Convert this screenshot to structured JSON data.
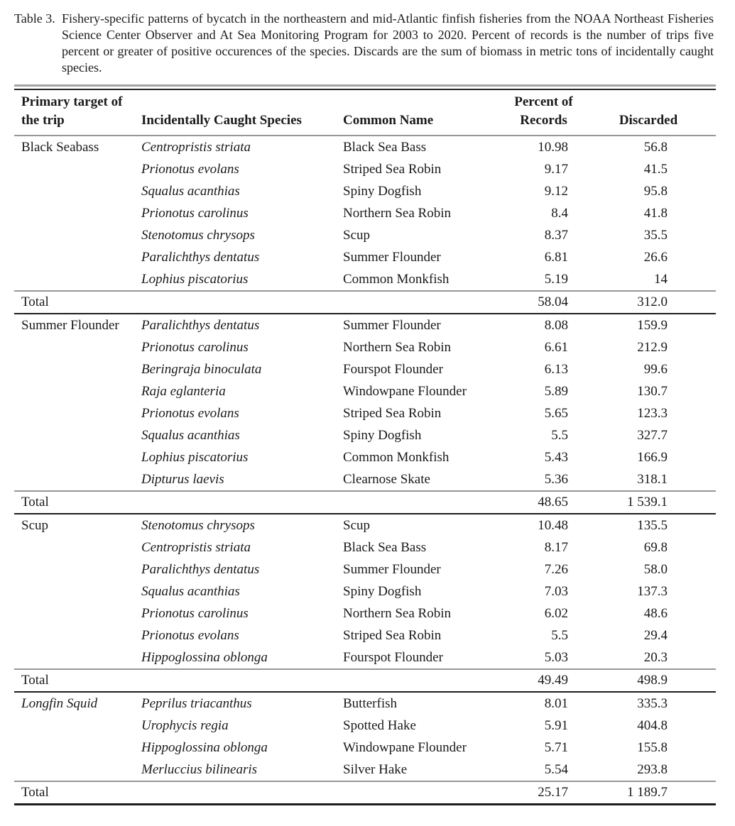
{
  "caption": {
    "label": "Table 3.",
    "text": "Fishery-specific patterns of bycatch in the northeastern and mid-Atlantic finfish fisheries from the NOAA Northeast Fisheries Science Center Observer and At Sea Monitoring Program for 2003 to 2020. Percent of records is the number of trips five percent or greater of positive occurences of the species. Discards are the sum of biomass in metric tons of incidentally caught species."
  },
  "table": {
    "headers": [
      "Primary target of\nthe trip",
      "Incidentally Caught Species",
      "Common Name",
      "Percent of\nRecords",
      "Discarded"
    ],
    "sections": [
      {
        "target": "Black Seabass",
        "target_italic": false,
        "rows": [
          {
            "species": "Centropristis striata",
            "common": "Black Sea Bass",
            "percent": "10.98",
            "discarded": "56.8"
          },
          {
            "species": "Prionotus evolans",
            "common": "Striped Sea Robin",
            "percent": "9.17",
            "discarded": "41.5"
          },
          {
            "species": "Squalus acanthias",
            "common": "Spiny Dogfish",
            "percent": "9.12",
            "discarded": "95.8"
          },
          {
            "species": "Prionotus carolinus",
            "common": "Northern Sea Robin",
            "percent": "8.4",
            "discarded": "41.8"
          },
          {
            "species": "Stenotomus chrysops",
            "common": "Scup",
            "percent": "8.37",
            "discarded": "35.5"
          },
          {
            "species": "Paralichthys dentatus",
            "common": "Summer Flounder",
            "percent": "6.81",
            "discarded": "26.6"
          },
          {
            "species": "Lophius piscatorius",
            "common": "Common Monkfish",
            "percent": "5.19",
            "discarded": "14"
          }
        ],
        "total": {
          "label": "Total",
          "percent": "58.04",
          "discarded": "312.0"
        }
      },
      {
        "target": "Summer Flounder",
        "target_italic": false,
        "rows": [
          {
            "species": "Paralichthys dentatus",
            "common": "Summer Flounder",
            "percent": "8.08",
            "discarded": "159.9"
          },
          {
            "species": "Prionotus carolinus",
            "common": "Northern Sea Robin",
            "percent": "6.61",
            "discarded": "212.9"
          },
          {
            "species": "Beringraja binoculata",
            "common": "Fourspot Flounder",
            "percent": "6.13",
            "discarded": "99.6"
          },
          {
            "species": "Raja eglanteria",
            "common": "Windowpane Flounder",
            "percent": "5.89",
            "discarded": "130.7"
          },
          {
            "species": "Prionotus evolans",
            "common": "Striped Sea Robin",
            "percent": "5.65",
            "discarded": "123.3"
          },
          {
            "species": "Squalus acanthias",
            "common": "Spiny Dogfish",
            "percent": "5.5",
            "discarded": "327.7"
          },
          {
            "species": "Lophius piscatorius",
            "common": "Common Monkfish",
            "percent": "5.43",
            "discarded": "166.9"
          },
          {
            "species": "Dipturus laevis",
            "common": "Clearnose Skate",
            "percent": "5.36",
            "discarded": "318.1"
          }
        ],
        "total": {
          "label": "Total",
          "percent": "48.65",
          "discarded": "1 539.1"
        }
      },
      {
        "target": "Scup",
        "target_italic": false,
        "rows": [
          {
            "species": "Stenotomus chrysops",
            "common": "Scup",
            "percent": "10.48",
            "discarded": "135.5"
          },
          {
            "species": "Centropristis striata",
            "common": "Black Sea Bass",
            "percent": "8.17",
            "discarded": "69.8"
          },
          {
            "species": "Paralichthys dentatus",
            "common": "Summer Flounder",
            "percent": "7.26",
            "discarded": "58.0"
          },
          {
            "species": "Squalus acanthias",
            "common": "Spiny Dogfish",
            "percent": "7.03",
            "discarded": "137.3"
          },
          {
            "species": "Prionotus carolinus",
            "common": "Northern Sea Robin",
            "percent": "6.02",
            "discarded": "48.6"
          },
          {
            "species": "Prionotus evolans",
            "common": "Striped Sea Robin",
            "percent": "5.5",
            "discarded": "29.4"
          },
          {
            "species": "Hippoglossina oblonga",
            "common": "Fourspot Flounder",
            "percent": "5.03",
            "discarded": "20.3"
          }
        ],
        "total": {
          "label": "Total",
          "percent": "49.49",
          "discarded": "498.9"
        }
      },
      {
        "target": "Longfin Squid",
        "target_italic": true,
        "rows": [
          {
            "species": "Peprilus triacanthus",
            "common": "Butterfish",
            "percent": "8.01",
            "discarded": "335.3"
          },
          {
            "species": "Urophycis regia",
            "common": "Spotted Hake",
            "percent": "5.91",
            "discarded": "404.8"
          },
          {
            "species": "Hippoglossina oblonga",
            "common": "Windowpane Flounder",
            "percent": "5.71",
            "discarded": "155.8"
          },
          {
            "species": "Merluccius bilinearis",
            "common": "Silver Hake",
            "percent": "5.54",
            "discarded": "293.8"
          }
        ],
        "total": {
          "label": "Total",
          "percent": "25.17",
          "discarded": "1 189.7"
        }
      }
    ]
  },
  "colors": {
    "text": "#1a1a1a",
    "rule_gray": "#a3a3a3",
    "rule_black": "#1d1d1d",
    "background": "#ffffff"
  }
}
